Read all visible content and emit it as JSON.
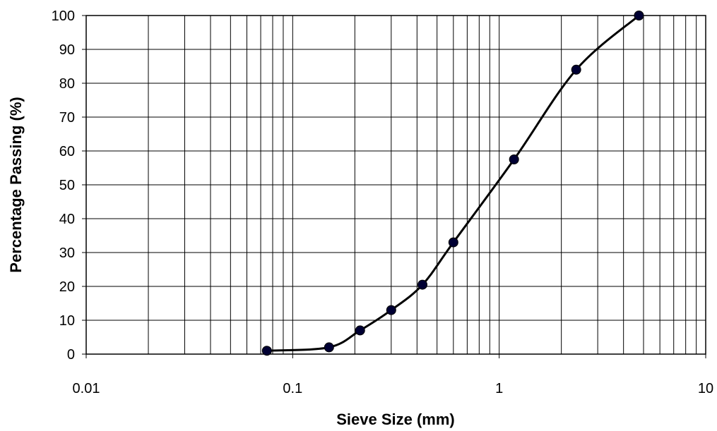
{
  "chart_data": {
    "type": "line",
    "xlabel": "Sieve Size (mm)",
    "ylabel": "Percentage Passing (%)",
    "x_scale": "log",
    "xlim": [
      0.01,
      10
    ],
    "ylim": [
      0,
      100
    ],
    "x_ticks": [
      {
        "value": 0.01,
        "label": "0.01"
      },
      {
        "value": 0.1,
        "label": "0.1"
      },
      {
        "value": 1,
        "label": "1"
      },
      {
        "value": 10,
        "label": "10"
      }
    ],
    "y_ticks": [
      0,
      10,
      20,
      30,
      40,
      50,
      60,
      70,
      80,
      90,
      100
    ],
    "grid": true,
    "series": [
      {
        "x": [
          0.075,
          0.15,
          0.212,
          0.3,
          0.425,
          0.6,
          1.18,
          2.36,
          4.75
        ],
        "y": [
          1,
          2,
          7,
          13,
          20.5,
          33,
          57.5,
          84,
          100
        ],
        "color": "#000000",
        "marker_color": "#000033"
      }
    ]
  }
}
